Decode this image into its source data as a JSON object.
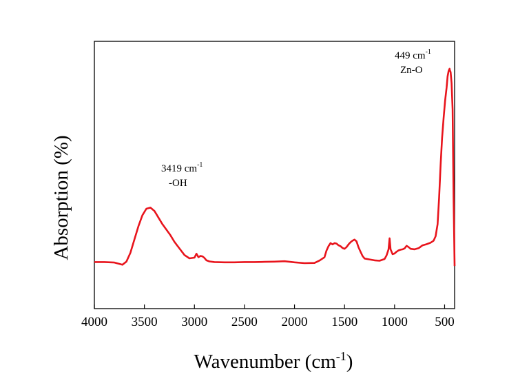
{
  "chart_data": {
    "type": "line",
    "title": "",
    "xlabel": "Wavenumber (cm",
    "xlabel_sup": "-1",
    "xlabel_tail": ")",
    "ylabel": "Absorption (%)",
    "xlim": [
      4000,
      400
    ],
    "x_reversed": true,
    "ylim": [
      0,
      100
    ],
    "y_ticks_labeled": false,
    "grid": false,
    "legend": "none",
    "x_ticks": [
      4000,
      3500,
      3000,
      2500,
      2000,
      1500,
      1000,
      500
    ],
    "x_tick_labels": [
      "4000",
      "3500",
      "3000",
      "2500",
      "2000",
      "1500",
      "1000",
      "500"
    ],
    "series": [
      {
        "color": "#e8141c",
        "x": [
          4000,
          3900,
          3800,
          3720,
          3680,
          3640,
          3600,
          3560,
          3520,
          3480,
          3440,
          3400,
          3360,
          3320,
          3280,
          3240,
          3200,
          3150,
          3100,
          3050,
          3000,
          2980,
          2960,
          2940,
          2920,
          2900,
          2880,
          2850,
          2800,
          2700,
          2600,
          2500,
          2400,
          2300,
          2200,
          2100,
          2000,
          1900,
          1800,
          1750,
          1700,
          1680,
          1660,
          1640,
          1620,
          1600,
          1580,
          1560,
          1540,
          1520,
          1500,
          1480,
          1460,
          1440,
          1420,
          1400,
          1380,
          1360,
          1340,
          1320,
          1300,
          1250,
          1200,
          1150,
          1100,
          1080,
          1060,
          1050,
          1040,
          1020,
          1000,
          980,
          960,
          940,
          920,
          900,
          880,
          860,
          840,
          800,
          760,
          720,
          680,
          640,
          610,
          590,
          570,
          555,
          540,
          525,
          510,
          495,
          480,
          470,
          460,
          450,
          449,
          440,
          430,
          420,
          410,
          400
        ],
        "values": [
          10.8,
          10.8,
          10.6,
          9.6,
          11,
          15,
          21,
          27,
          32,
          35,
          35.5,
          34,
          31,
          28,
          25.5,
          23,
          20,
          17,
          14,
          12.5,
          12.8,
          14.6,
          13,
          13.6,
          13.4,
          12.7,
          11.6,
          11.1,
          10.8,
          10.7,
          10.7,
          10.8,
          10.8,
          10.9,
          11,
          11.2,
          10.7,
          10.3,
          10.4,
          11.5,
          13,
          16,
          18,
          19.4,
          18.8,
          19.4,
          19.2,
          18.4,
          18,
          17.2,
          16.8,
          17.6,
          18.8,
          19.8,
          20.5,
          21,
          20.2,
          17.5,
          15.5,
          13.6,
          12.4,
          12,
          11.6,
          11.4,
          12.2,
          13.8,
          16.6,
          21.6,
          16.6,
          14.4,
          14.7,
          15.5,
          16.1,
          16.4,
          16.6,
          17,
          18.2,
          17.6,
          16.8,
          16.6,
          17.1,
          18.4,
          18.9,
          19.6,
          20.5,
          22.5,
          28,
          40,
          55,
          67,
          76,
          84,
          90,
          95,
          97.5,
          98.5,
          98,
          97,
          92,
          80,
          40,
          9
        ]
      }
    ],
    "annotations": [
      {
        "text": "3419 cm",
        "sup": "-1",
        "line2": "-OH",
        "x": 3419,
        "y": 50
      },
      {
        "text": "449 cm",
        "sup": "-1",
        "line2": "Zn-O",
        "x": 449,
        "y": 103
      }
    ]
  }
}
